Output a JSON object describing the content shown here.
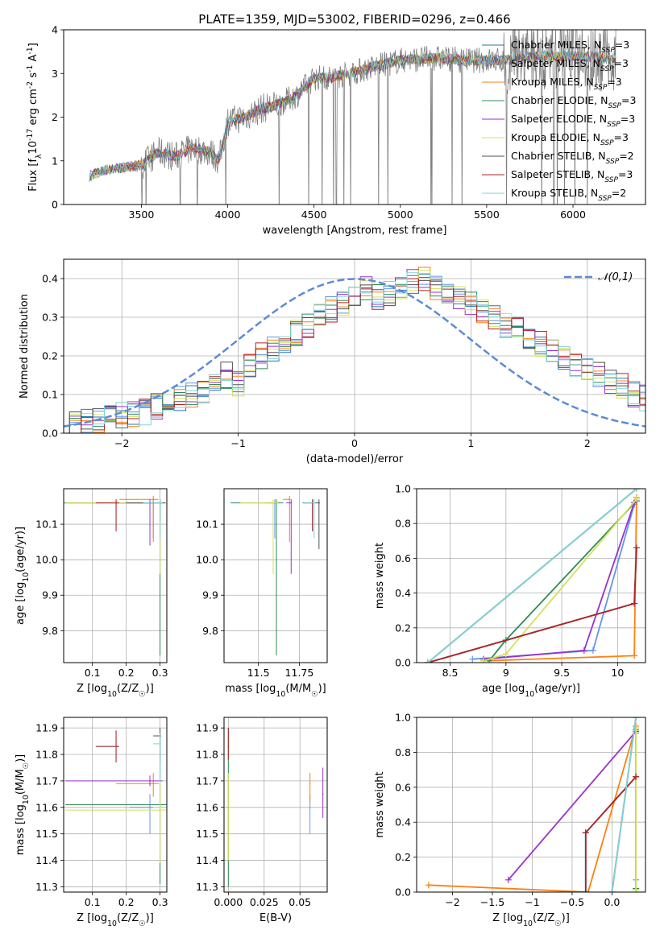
{
  "figure": {
    "title": "PLATE=1359, MJD=53002, FIBERID=0296, z=0.466"
  },
  "legend_series": [
    {
      "name": "Chabrier MILES, N$_{SSP}$=3",
      "label_main": "Chabrier MILES, N",
      "label_sub": "SSP",
      "label_tail": "=3",
      "color": "#1f77b4"
    },
    {
      "name": "Salpeter MILES, N$_{SSP}$=3",
      "label_main": "Salpeter MILES, N",
      "label_sub": "SSP",
      "label_tail": "=3",
      "color": "#6495ed"
    },
    {
      "name": "Kroupa MILES, N$_{SSP}$=3",
      "label_main": "Kroupa MILES, N",
      "label_sub": "SSP",
      "label_tail": "=3",
      "color": "#ff7f0e"
    },
    {
      "name": "Chabrier ELODIE, N$_{SSP}$=3",
      "label_main": "Chabrier ELODIE, N",
      "label_sub": "SSP",
      "label_tail": "=3",
      "color": "#2e8b57"
    },
    {
      "name": "Salpeter ELODIE, N$_{SSP}$=3",
      "label_main": "Salpeter ELODIE, N",
      "label_sub": "SSP",
      "label_tail": "=3",
      "color": "#9932cc"
    },
    {
      "name": "Kroupa ELODIE, N$_{SSP}$=3",
      "label_main": "Kroupa ELODIE, N",
      "label_sub": "SSP",
      "label_tail": "=3",
      "color": "#d4e157"
    },
    {
      "name": "Chabrier STELIB, N$_{SSP}$=2",
      "label_main": "Chabrier STELIB, N",
      "label_sub": "SSP",
      "label_tail": "=2",
      "color": "#505050"
    },
    {
      "name": "Salpeter STELIB, N$_{SSP}$=3",
      "label_main": "Salpeter STELIB, N",
      "label_sub": "SSP",
      "label_tail": "=3",
      "color": "#b22222"
    },
    {
      "name": "Kroupa STELIB, N$_{SSP}$=2",
      "label_main": "Kroupa STELIB, N",
      "label_sub": "SSP",
      "label_tail": "=2",
      "color": "#7fd3d8"
    }
  ],
  "chart_data": [
    {
      "id": "spectrum",
      "type": "line",
      "xlabel": "wavelength [Angstrom, rest frame]",
      "ylabel": "Flux [f$_\\lambda$10$^{-17}$ erg cm$^{-2}$ s$^{-1}$ A$^{-1}$]",
      "xlim": [
        3050,
        6420
      ],
      "ylim": [
        0,
        4
      ],
      "xticks": [
        3500,
        4000,
        4500,
        5000,
        5500,
        6000
      ],
      "yticks": [
        0,
        1,
        2,
        3,
        4
      ],
      "legend": "top-right",
      "observed_data_color": "#808080",
      "continuum_knots": {
        "x": [
          3200,
          3300,
          3400,
          3500,
          3600,
          3700,
          3800,
          3900,
          3950,
          4000,
          4100,
          4200,
          4300,
          4400,
          4500,
          4600,
          4700,
          4800,
          4900,
          5000,
          5200,
          5400,
          5600,
          5800,
          6000,
          6200
        ],
        "y": [
          0.65,
          0.8,
          0.85,
          0.9,
          1.2,
          1.1,
          1.3,
          1.2,
          1.0,
          1.9,
          2.0,
          2.2,
          2.3,
          2.5,
          2.9,
          2.9,
          3.0,
          3.1,
          3.2,
          3.3,
          3.35,
          3.3,
          3.3,
          3.4,
          3.4,
          3.35
        ]
      }
    },
    {
      "id": "residuals",
      "type": "histogram",
      "xlabel": "(data-model)/error",
      "ylabel": "Normed distribution",
      "xlim": [
        -2.5,
        2.5
      ],
      "ylim": [
        0,
        0.45
      ],
      "xticks": [
        -2,
        -1,
        0,
        1,
        2
      ],
      "yticks": [
        0.0,
        0.1,
        0.2,
        0.3,
        0.4
      ],
      "grid": true,
      "legend": "top-right",
      "reference_label": "$\\mathcal{N}(0,1)$",
      "reference_color": "#5b8bd6",
      "bin_width": 0.1,
      "base_heights": [
        0.02,
        0.025,
        0.03,
        0.035,
        0.04,
        0.045,
        0.05,
        0.055,
        0.07,
        0.08,
        0.09,
        0.1,
        0.11,
        0.12,
        0.15,
        0.13,
        0.17,
        0.2,
        0.22,
        0.24,
        0.26,
        0.28,
        0.3,
        0.32,
        0.34,
        0.36,
        0.37,
        0.35,
        0.36,
        0.38,
        0.39,
        0.4,
        0.38,
        0.37,
        0.35,
        0.33,
        0.32,
        0.3,
        0.28,
        0.27,
        0.25,
        0.23,
        0.22,
        0.2,
        0.18,
        0.17,
        0.15,
        0.13,
        0.12,
        0.1,
        0.09
      ]
    },
    {
      "id": "age_vs_Z",
      "type": "scatter",
      "xlabel": "Z [log$_{10}$(Z/Z$_\\odot$)]",
      "ylabel": "age  [log$_{10}$(age/yr)]",
      "xlim": [
        0.015,
        0.32
      ],
      "ylim": [
        9.71,
        10.2
      ],
      "xticks": [
        0.1,
        0.2,
        0.3
      ],
      "yticks": [
        9.8,
        9.9,
        10.0,
        10.1
      ],
      "grid": true,
      "points": [
        {
          "x": 0.17,
          "y": 10.16,
          "xerr": 0.16,
          "yerr": [
            0.08,
            0.01
          ],
          "series": 0
        },
        {
          "x": 0.28,
          "y": 10.16,
          "xerr": 0.12,
          "yerr": [
            0.1,
            0.01
          ],
          "series": 1
        },
        {
          "x": 0.28,
          "y": 10.17,
          "xerr": 0.1,
          "yerr": [
            0.12,
            0.01
          ],
          "series": 2
        },
        {
          "x": 0.3,
          "y": 10.16,
          "xerr": 0.28,
          "yerr": [
            0.43,
            0.01
          ],
          "series": 3
        },
        {
          "x": 0.27,
          "y": 10.16,
          "xerr": 0.08,
          "yerr": [
            0.12,
            0.01
          ],
          "series": 4
        },
        {
          "x": 0.3,
          "y": 10.16,
          "xerr": 0.28,
          "yerr": [
            0.2,
            0.01
          ],
          "series": 5
        },
        {
          "x": 0.3,
          "y": 10.16,
          "xerr": 0.1,
          "yerr": [
            0.05,
            0.01
          ],
          "series": 6
        },
        {
          "x": 0.17,
          "y": 10.16,
          "xerr": 0.06,
          "yerr": [
            0.08,
            0.01
          ],
          "series": 7
        },
        {
          "x": 0.3,
          "y": 10.16,
          "xerr": 0.05,
          "yerr": [
            0.1,
            0.01
          ],
          "series": 8
        }
      ]
    },
    {
      "id": "age_vs_mass",
      "type": "scatter",
      "xlabel": "mass [log$_{10}$(M/M$_\\odot$)]",
      "ylabel": "",
      "xlim": [
        11.29,
        11.92
      ],
      "ylim": [
        9.71,
        10.2
      ],
      "xticks": [
        11.5,
        11.75
      ],
      "yticks": [
        9.8,
        9.9,
        10.0,
        10.1
      ],
      "grid": true,
      "points": [
        {
          "x": 11.83,
          "y": 10.16,
          "xerr": 0.06,
          "yerr": [
            0.08,
            0.01
          ],
          "series": 0
        },
        {
          "x": 11.6,
          "y": 10.16,
          "xerr": 0.05,
          "yerr": [
            0.1,
            0.01
          ],
          "series": 1
        },
        {
          "x": 11.69,
          "y": 10.17,
          "xerr": 0.04,
          "yerr": [
            0.12,
            0.01
          ],
          "series": 2
        },
        {
          "x": 11.61,
          "y": 10.16,
          "xerr": 0.28,
          "yerr": [
            0.43,
            0.01
          ],
          "series": 3
        },
        {
          "x": 11.7,
          "y": 10.16,
          "xerr": 0.03,
          "yerr": [
            0.2,
            0.01
          ],
          "series": 4
        },
        {
          "x": 11.59,
          "y": 10.16,
          "xerr": 0.2,
          "yerr": [
            0.2,
            0.01
          ],
          "series": 5
        },
        {
          "x": 11.87,
          "y": 10.16,
          "xerr": 0.03,
          "yerr": [
            0.13,
            0.01
          ],
          "series": 6
        },
        {
          "x": 11.83,
          "y": 10.16,
          "xerr": 0.05,
          "yerr": [
            0.08,
            0.01
          ],
          "series": 7
        },
        {
          "x": 11.84,
          "y": 10.16,
          "xerr": 0.06,
          "yerr": [
            0.1,
            0.01
          ],
          "series": 8
        }
      ]
    },
    {
      "id": "weight_vs_age",
      "type": "line",
      "xlabel": "age  [log$_{10}$(age/yr)]",
      "ylabel": "mass weight",
      "xlim": [
        8.2,
        10.25
      ],
      "ylim": [
        0,
        1
      ],
      "xticks": [
        8.5,
        9.0,
        9.5,
        10.0
      ],
      "yticks": [
        0.0,
        0.2,
        0.4,
        0.6,
        0.8,
        1.0
      ],
      "grid": true,
      "lines": [
        {
          "series": 0,
          "x": [
            8.3,
            10.15,
            10.17
          ],
          "y": [
            0.0,
            0.34,
            0.66
          ]
        },
        {
          "series": 1,
          "x": [
            8.7,
            9.78,
            10.15
          ],
          "y": [
            0.02,
            0.07,
            0.91
          ]
        },
        {
          "series": 2,
          "x": [
            8.8,
            10.15,
            10.17
          ],
          "y": [
            0.01,
            0.04,
            0.95
          ]
        },
        {
          "series": 3,
          "x": [
            8.85,
            9.0,
            10.17
          ],
          "y": [
            0.01,
            0.13,
            0.93
          ]
        },
        {
          "series": 4,
          "x": [
            8.8,
            9.7,
            10.15
          ],
          "y": [
            0.02,
            0.07,
            0.92
          ]
        },
        {
          "series": 5,
          "x": [
            8.8,
            9.0,
            10.17
          ],
          "y": [
            0.01,
            0.05,
            0.94
          ]
        },
        {
          "series": 6,
          "x": [
            8.3,
            10.17
          ],
          "y": [
            0.0,
            1.0
          ]
        },
        {
          "series": 7,
          "x": [
            8.3,
            10.15,
            10.17
          ],
          "y": [
            0.0,
            0.34,
            0.66
          ]
        },
        {
          "series": 8,
          "x": [
            8.3,
            10.17
          ],
          "y": [
            0.0,
            1.0
          ]
        }
      ]
    },
    {
      "id": "mass_vs_Z",
      "type": "scatter",
      "xlabel": "Z [log$_{10}$(Z/Z$_\\odot$)]",
      "ylabel": "mass [log$_{10}$(M/M$_\\odot$)]",
      "xlim": [
        0.015,
        0.32
      ],
      "ylim": [
        11.28,
        11.94
      ],
      "xticks": [
        0.1,
        0.2,
        0.3
      ],
      "yticks": [
        11.3,
        11.4,
        11.5,
        11.6,
        11.7,
        11.8,
        11.9
      ],
      "grid": true,
      "points": [
        {
          "x": 0.17,
          "y": 11.83,
          "xerr": 0.06,
          "yerr": [
            0.06,
            0.06
          ],
          "series": 0
        },
        {
          "x": 0.27,
          "y": 11.6,
          "xerr": 0.06,
          "yerr": [
            0.1,
            0.05
          ],
          "series": 1
        },
        {
          "x": 0.28,
          "y": 11.69,
          "xerr": 0.11,
          "yerr": [
            0.05,
            0.04
          ],
          "series": 2
        },
        {
          "x": 0.3,
          "y": 11.61,
          "xerr": 0.28,
          "yerr": [
            0.3,
            0.27
          ],
          "series": 3
        },
        {
          "x": 0.27,
          "y": 11.7,
          "xerr": 0.25,
          "yerr": [
            0.02,
            0.02
          ],
          "series": 4
        },
        {
          "x": 0.3,
          "y": 11.59,
          "xerr": 0.28,
          "yerr": [
            0.2,
            0.15
          ],
          "series": 5
        },
        {
          "x": 0.3,
          "y": 11.87,
          "xerr": 0.02,
          "yerr": [
            0.1,
            0.03
          ],
          "series": 6
        },
        {
          "x": 0.17,
          "y": 11.83,
          "xerr": 0.06,
          "yerr": [
            0.06,
            0.06
          ],
          "series": 7
        },
        {
          "x": 0.3,
          "y": 11.84,
          "xerr": 0.02,
          "yerr": [
            0.14,
            0.04
          ],
          "series": 8
        }
      ]
    },
    {
      "id": "mass_vs_ebv",
      "type": "scatter",
      "xlabel": "E(B-V)",
      "ylabel": "",
      "xlim": [
        -0.003,
        0.069
      ],
      "ylim": [
        11.28,
        11.94
      ],
      "xticks": [
        0.0,
        0.025,
        0.05
      ],
      "yticks": [
        11.3,
        11.4,
        11.5,
        11.6,
        11.7,
        11.8,
        11.9
      ],
      "grid": true,
      "points": [
        {
          "x": 0.0,
          "y": 11.6,
          "yerr": [
            0.3,
            0.3
          ],
          "series": 3
        },
        {
          "x": 0.0,
          "y": 11.58,
          "yerr": [
            0.18,
            0.15
          ],
          "series": 5
        },
        {
          "x": 0.0,
          "y": 11.83,
          "yerr": [
            0.05,
            0.07
          ],
          "series": 7
        },
        {
          "x": 0.057,
          "y": 11.6,
          "yerr": [
            0.1,
            0.05
          ],
          "series": 1
        },
        {
          "x": 0.057,
          "y": 11.69,
          "yerr": [
            0.07,
            0.04
          ],
          "series": 2
        },
        {
          "x": 0.066,
          "y": 11.65,
          "yerr": [
            0.09,
            0.1
          ],
          "series": 4
        }
      ]
    },
    {
      "id": "weight_vs_Z",
      "type": "line",
      "xlabel": "Z [log$_{10}$(Z/Z$_\\odot$)]",
      "ylabel": "mass weight",
      "xlim": [
        -2.45,
        0.42
      ],
      "ylim": [
        0,
        1
      ],
      "xticks": [
        -2.0,
        -1.5,
        -1.0,
        -0.5,
        0.0
      ],
      "yticks": [
        0.0,
        0.2,
        0.4,
        0.6,
        0.8,
        1.0
      ],
      "grid": true,
      "lines": [
        {
          "series": 0,
          "x": [
            -0.33,
            -0.33,
            0.3
          ],
          "y": [
            0.0,
            0.34,
            0.66
          ]
        },
        {
          "series": 1,
          "x": [
            0.3,
            0.3,
            0.3
          ],
          "y": [
            0.02,
            0.07,
            0.91
          ]
        },
        {
          "series": 2,
          "x": [
            -2.3,
            -0.3,
            0.3
          ],
          "y": [
            0.04,
            0.0,
            0.95
          ]
        },
        {
          "series": 3,
          "x": [
            0.3,
            0.3
          ],
          "y": [
            0.02,
            0.93
          ]
        },
        {
          "series": 4,
          "x": [
            -1.3,
            0.3
          ],
          "y": [
            0.07,
            0.92
          ]
        },
        {
          "series": 5,
          "x": [
            0.3,
            0.3
          ],
          "y": [
            0.01,
            0.94
          ]
        },
        {
          "series": 6,
          "x": [
            0.0,
            0.3
          ],
          "y": [
            0.0,
            1.0
          ]
        },
        {
          "series": 7,
          "x": [
            -0.33,
            -0.33,
            0.3
          ],
          "y": [
            0.0,
            0.34,
            0.66
          ]
        },
        {
          "series": 8,
          "x": [
            0.0,
            0.3
          ],
          "y": [
            0.0,
            1.0
          ]
        }
      ]
    }
  ]
}
